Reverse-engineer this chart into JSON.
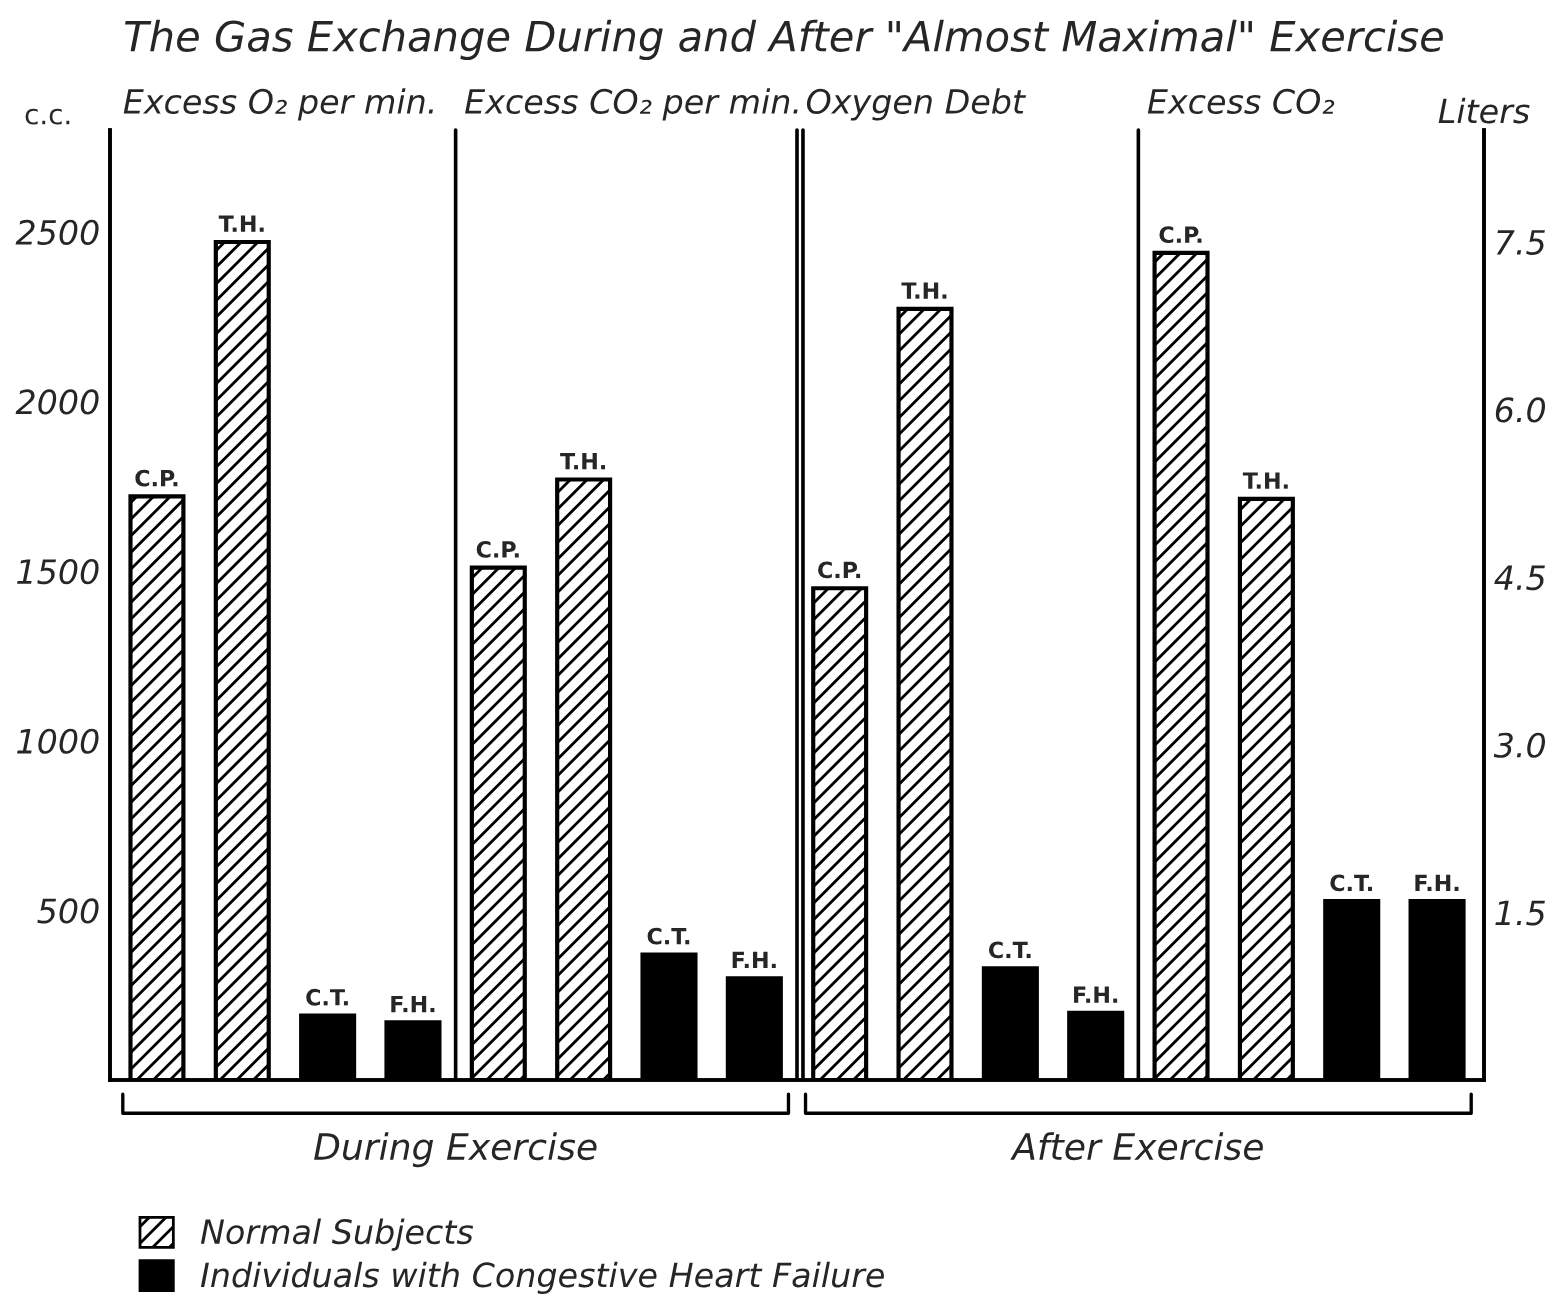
{
  "chart_data": {
    "type": "bar",
    "title": "The Gas Exchange During and After \"Almost Maximal\" Exercise",
    "ylabel": "c.c.",
    "y2label": "Liters",
    "categories": [
      "C.P.",
      "T.H.",
      "C.T.",
      "F.H.",
      "C.P.",
      "T.H.",
      "C.T.",
      "F.H.",
      "C.P.",
      "T.H.",
      "C.T.",
      "F.H.",
      "C.P.",
      "T.H.",
      "C.T.",
      "F.H."
    ],
    "series": [
      {
        "name": "Normal Subjects",
        "color": "#000000",
        "values": [
          1720,
          2470,
          null,
          null,
          1510,
          1770,
          null,
          null,
          null,
          null,
          null,
          null,
          null,
          null,
          null,
          null
        ]
      },
      {
        "name": "Individuals with Congestive Heart Failure",
        "color": "#000000",
        "values": [
          null,
          null,
          190,
          170,
          null,
          null,
          370,
          300,
          null,
          null,
          null,
          null,
          null,
          null,
          null,
          null
        ]
      },
      {
        "color": "#000000",
        "axis": "y2",
        "values": [
          null,
          null,
          null,
          null,
          null,
          null,
          null,
          null,
          4.4,
          6.9,
          null,
          null,
          7.4,
          5.2,
          null,
          null
        ]
      },
      {
        "color": "#000000",
        "axis": "y2",
        "values": [
          null,
          null,
          null,
          null,
          null,
          null,
          null,
          null,
          null,
          null,
          1.0,
          0.6,
          null,
          null,
          1.6,
          1.6
        ]
      }
    ],
    "ylim": [
      0,
      2800
    ],
    "yticks": [
      500,
      1000,
      1500,
      2000,
      2500
    ],
    "y2lim": [
      0,
      8.5
    ],
    "y2ticks": [
      1.5,
      {
        "value": 3,
        "label": "3.0"
      },
      4.5,
      {
        "value": 6,
        "label": "6.0"
      },
      7.5
    ],
    "legend": "bottom",
    "annotations": [
      "Excess O₂ per min.",
      "Excess CO₂ per min.",
      "Oxygen Debt",
      "Excess CO₂",
      "During Exercise",
      "After Exercise"
    ]
  }
}
